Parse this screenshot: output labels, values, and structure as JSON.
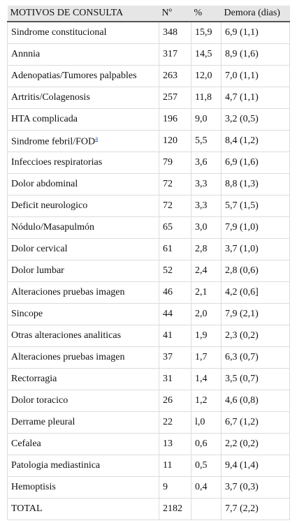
{
  "table": {
    "header": [
      "MOTIVOS DE CONSULTA",
      "Nº",
      "%",
      "Demora (dias)"
    ],
    "rows": [
      [
        "Sindrome constitucional",
        "348",
        "15,9",
        "6,9 (1,1)"
      ],
      [
        "Annnia",
        "317",
        "14,5",
        "8,9 (1,6)"
      ],
      [
        "Adenopatias/Tumores palpables",
        "263",
        "12,0",
        "7,0 (1,1)"
      ],
      [
        "Artritis/Colagenosis",
        "257",
        "11,8",
        "4,7 (1,1)"
      ],
      [
        "HTA complicada",
        "196",
        "9,0",
        "3,2 (0,5)"
      ],
      [
        {
          "text": "Sindrome febril/FOD",
          "sup": "a"
        },
        "120",
        "5,5",
        "8,4 (1,2)"
      ],
      [
        "Infeccioes respiratorias",
        "79",
        "3,6",
        "6,9 (1,6)"
      ],
      [
        "Dolor abdominal",
        "72",
        "3,3",
        "8,8 (1,3)"
      ],
      [
        "Deficit neurologico",
        "72",
        "3,3",
        "5,7 (1,5)"
      ],
      [
        "Nódulo/Masapulmón",
        "65",
        "3,0",
        "7,9 (1,0)"
      ],
      [
        "Dolor cervical",
        "61",
        "2,8",
        "3,7 (1,0)"
      ],
      [
        "Dolor lumbar",
        "52",
        "2,4",
        "2,8 (0,6)"
      ],
      [
        "Alteraciones pruebas imagen",
        "46",
        "2,1",
        "4,2 (0,6]"
      ],
      [
        "Sincope",
        "44",
        "2,0",
        "7,9 (2,1)"
      ],
      [
        "Otras alteraciones analiticas",
        "41",
        "1,9",
        "2,3 (0,2)"
      ],
      [
        "Alteraciones pruebas imagen",
        "37",
        "1,7",
        "6,3 (0,7)"
      ],
      [
        "Rectorragia",
        "31",
        "1,4",
        "3,5 (0,7)"
      ],
      [
        "Dolor toracico",
        "26",
        "1,2",
        "4,6 (0,8)"
      ],
      [
        "Derrame pleural",
        "22",
        "l,0",
        "6,7 (1,2)"
      ],
      [
        "Cefalea",
        "13",
        "0,6",
        "2,2 (0,2)"
      ],
      [
        "Patologia mediastinica",
        "11",
        "0,5",
        "9,4 (1,4)"
      ],
      [
        "Hemoptisis",
        "9",
        "0,4",
        "3,7 (0,3)"
      ],
      [
        "TOTAL",
        "2182",
        null,
        "7,7 (2,2)"
      ]
    ]
  }
}
